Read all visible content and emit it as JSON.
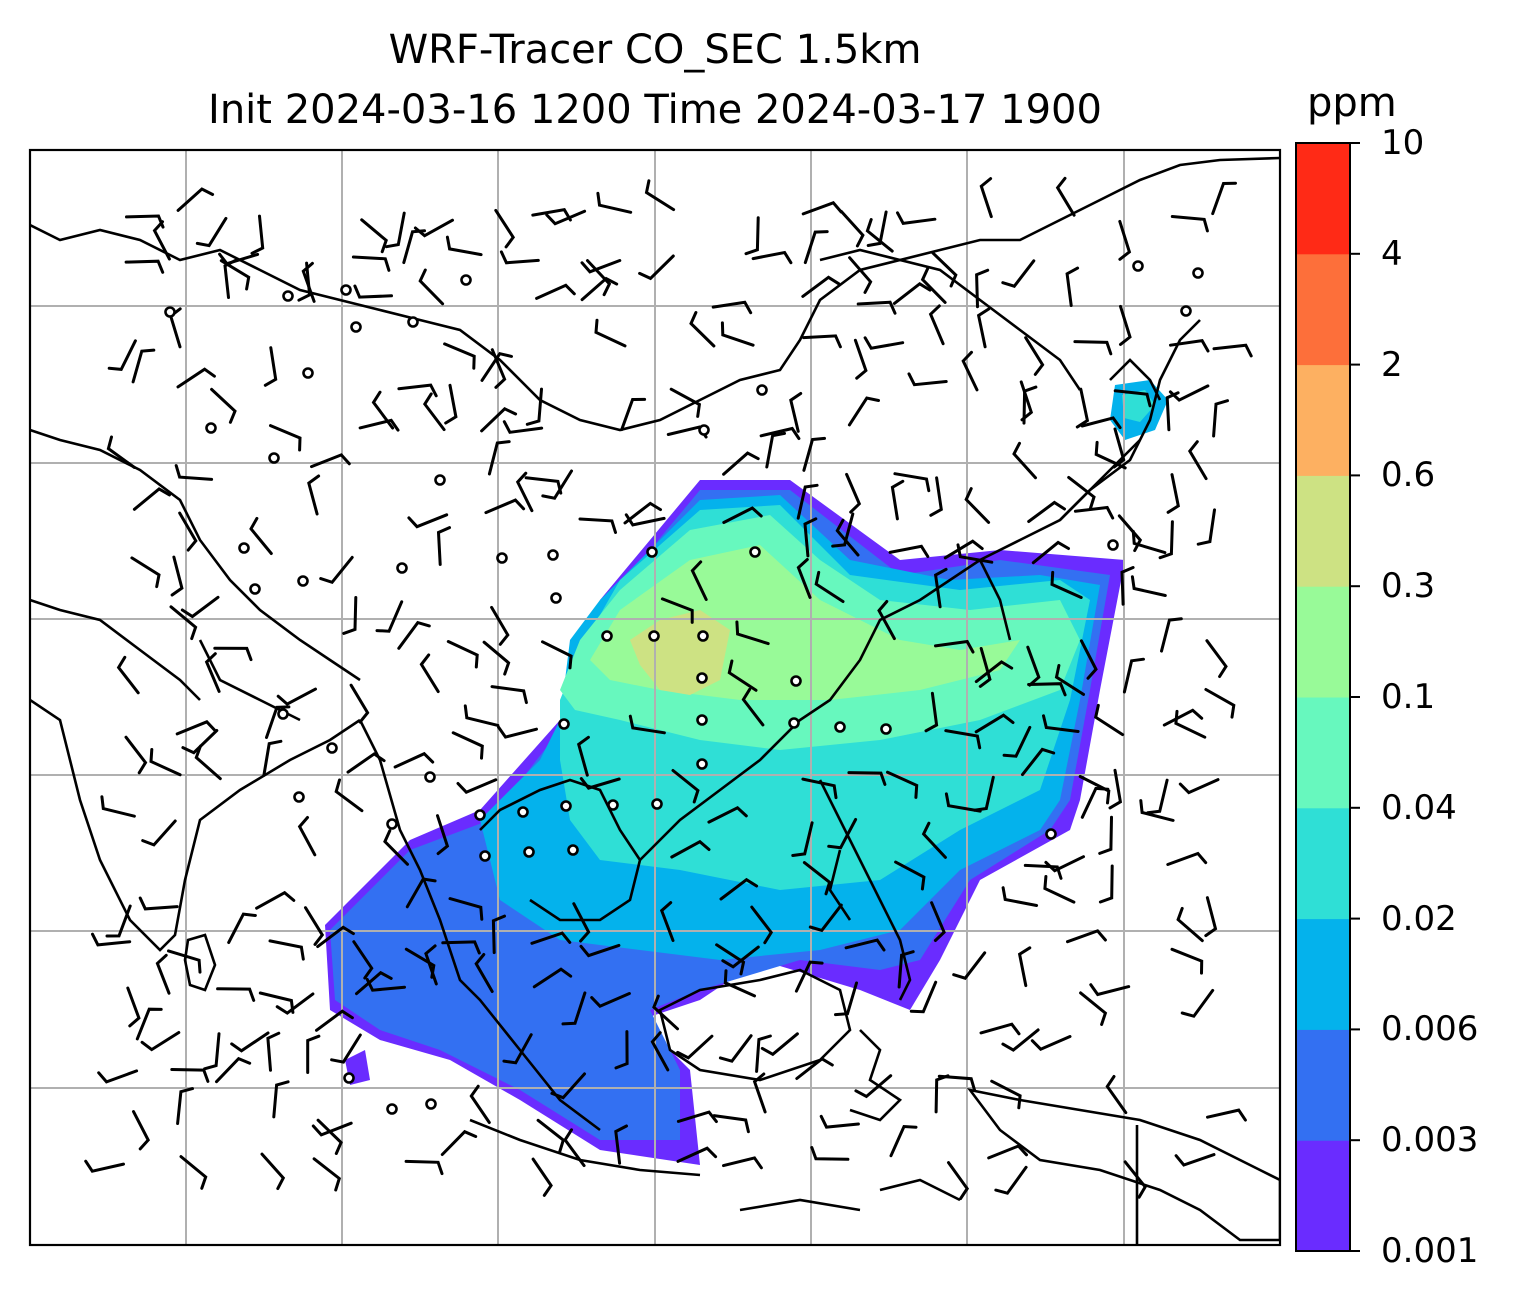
{
  "title": {
    "line1": "WRF-Tracer CO_SEC 1.5km",
    "line2": "Init 2024-03-16 1200 Time 2024-03-17 1900"
  },
  "colorbar": {
    "unit": "ppm",
    "levels": [
      "0.001",
      "0.003",
      "0.006",
      "0.02",
      "0.04",
      "0.1",
      "0.3",
      "0.6",
      "2",
      "4",
      "10"
    ],
    "colors": [
      "#6a2cff",
      "#3370f2",
      "#04b2ec",
      "#2fdfd6",
      "#67f8be",
      "#98fa98",
      "#cde283",
      "#fdb061",
      "#fd6f3a",
      "#ff2a16"
    ]
  },
  "map": {
    "background": "#ffffff",
    "gridline_color": "#b0b0b0",
    "coastline_color": "#000000",
    "wind_symbols": [
      "wind-barb",
      "calm-circle"
    ]
  }
}
